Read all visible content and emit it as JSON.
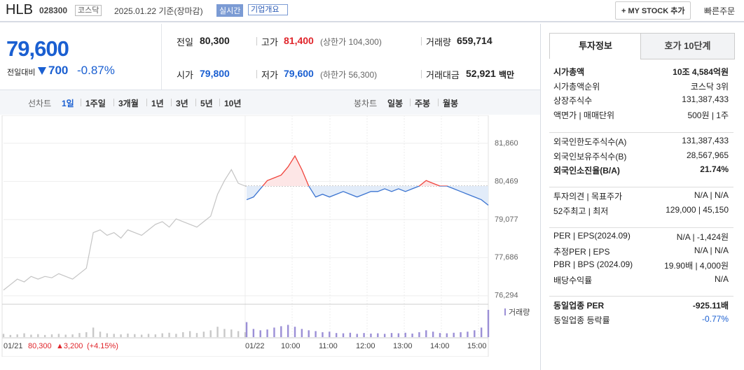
{
  "header": {
    "name": "HLB",
    "code": "028300",
    "market": "코스닥",
    "date": "2025.01.22 기준(장마감)",
    "realtime": "실시간",
    "overview": "기업개요",
    "mystock": "+ MY STOCK 추가",
    "quick_order": "빠른주문"
  },
  "quote": {
    "price": "79,600",
    "change_label": "전일대비",
    "change": "700",
    "rate": "-0.87%"
  },
  "stats": [
    {
      "label": "전일",
      "value": "80,300"
    },
    {
      "label": "고가",
      "value": "81,400",
      "color": "#e0252b",
      "note": "(상한가 104,300)"
    },
    {
      "label": "거래량",
      "value": "659,714"
    },
    {
      "label": "시가",
      "value": "79,800",
      "color": "#1a5fd1"
    },
    {
      "label": "저가",
      "value": "79,600",
      "color": "#1a5fd1",
      "note": "(하한가 56,300)"
    },
    {
      "label": "거래대금",
      "value": "52,921",
      "unit": "백만"
    }
  ],
  "period_tabs": {
    "line_label": "선차트",
    "line": [
      "1일",
      "1주일",
      "3개월",
      "1년",
      "3년",
      "5년",
      "10년"
    ],
    "candle_label": "봉차트",
    "candle": [
      "일봉",
      "주봉",
      "월봉"
    ]
  },
  "chart_footer": {
    "prev_close": "80,300",
    "change": "▲3,200",
    "rate": "(+4.15%)"
  },
  "chart_data": {
    "type": "line",
    "ylim": [
      76060,
      82420
    ],
    "yticks": [
      {
        "value": 81860,
        "label": "81,860"
      },
      {
        "value": 80469,
        "label": "80,469"
      },
      {
        "value": 79077,
        "label": "79,077"
      },
      {
        "value": 77686,
        "label": "77,686"
      },
      {
        "value": 76294,
        "label": "76,294"
      }
    ],
    "reference_line": 80300,
    "x_labels": [
      "01/21",
      "01/22",
      "10:00",
      "11:00",
      "12:00",
      "13:00",
      "14:00",
      "15:00"
    ],
    "series": [
      {
        "name": "01/21",
        "color": "#c4c4c4",
        "values": [
          76500,
          76700,
          76900,
          76800,
          77000,
          76900,
          77000,
          76950,
          77100,
          77000,
          76900,
          77100,
          77300,
          78600,
          78700,
          78500,
          78600,
          78400,
          78700,
          78600,
          78500,
          78700,
          78900,
          79000,
          78800,
          79100,
          79000,
          78900,
          78800,
          79000,
          79200,
          80000,
          80500,
          80900,
          80400,
          80300
        ]
      },
      {
        "name": "01/22",
        "color": "#3b74d1",
        "up_color": "#f0443c",
        "values": [
          79800,
          79900,
          80200,
          80500,
          80600,
          80700,
          81000,
          81400,
          80900,
          80300,
          79900,
          80000,
          79900,
          80000,
          80100,
          80000,
          79900,
          80000,
          80100,
          80100,
          80200,
          80100,
          80200,
          80100,
          80200,
          80300,
          80500,
          80400,
          80300,
          80300,
          80200,
          80100,
          80000,
          79900,
          79800,
          79600
        ]
      }
    ],
    "volume": {
      "label": "거래량",
      "ylim": [
        0,
        100
      ],
      "colors": [
        "#c8c8c8",
        "#9b8fd6"
      ],
      "days": [
        [
          12,
          8,
          10,
          14,
          9,
          11,
          8,
          10,
          12,
          9,
          10,
          15,
          18,
          35,
          20,
          14,
          12,
          10,
          13,
          11,
          9,
          12,
          10,
          14,
          16,
          12,
          18,
          22,
          15,
          20,
          25,
          38,
          30,
          28,
          22,
          18
        ],
        [
          55,
          30,
          25,
          28,
          35,
          40,
          45,
          38,
          30,
          25,
          22,
          18,
          20,
          15,
          14,
          16,
          12,
          15,
          13,
          14,
          12,
          15,
          14,
          16,
          13,
          18,
          25,
          20,
          15,
          14,
          16,
          18,
          20,
          25,
          35,
          100
        ]
      ]
    }
  },
  "side_tabs": [
    "투자정보",
    "호가 10단계"
  ],
  "invest_info": [
    [
      {
        "label": "시가총액",
        "value": "10조 4,584억원",
        "bold": true
      },
      {
        "label": "시가총액순위",
        "value": "코스닥 3위"
      },
      {
        "label": "상장주식수",
        "value": "131,387,433"
      },
      {
        "label": "액면가 | 매매단위",
        "value": "500원 | 1주"
      }
    ],
    [
      {
        "label": "외국인한도주식수(A)",
        "value": "131,387,433"
      },
      {
        "label": "외국인보유주식수(B)",
        "value": "28,567,965"
      },
      {
        "label": "외국인소진율(B/A)",
        "value": "21.74%",
        "bold": true
      }
    ],
    [
      {
        "label": "투자의견 | 목표주가",
        "value": "N/A | N/A"
      },
      {
        "label": "52주최고 | 최저",
        "value": "129,000 | 45,150"
      }
    ],
    [
      {
        "label": "PER | EPS(2024.09)",
        "value": "N/A | -1,424원"
      },
      {
        "label": "추정PER | EPS",
        "value": "N/A | N/A"
      },
      {
        "label": "PBR | BPS (2024.09)",
        "value": "19.90배 | 4,000원"
      },
      {
        "label": "배당수익률",
        "value": "N/A"
      }
    ],
    [
      {
        "label": "동일업종 PER",
        "value": "-925.11배",
        "bold": true
      },
      {
        "label": "동일업종 등락률",
        "value": "-0.77%",
        "color": "#1a5fd1"
      }
    ]
  ]
}
